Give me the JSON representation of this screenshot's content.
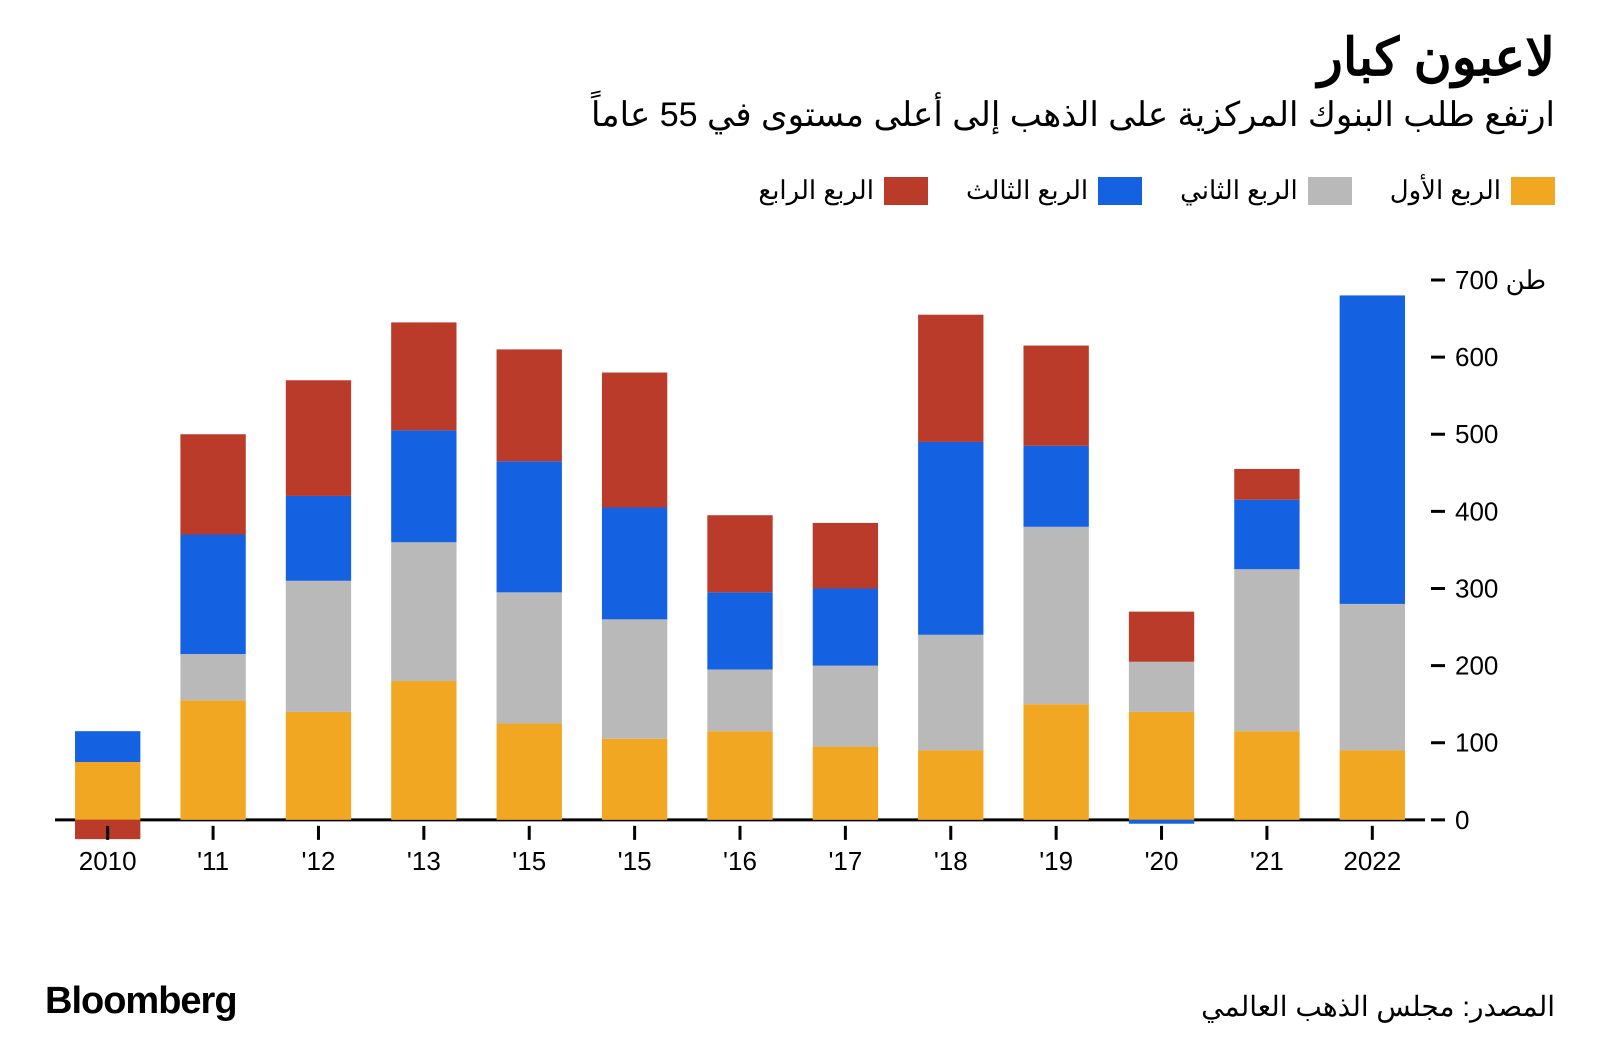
{
  "title": "لاعبون كبار",
  "subtitle": "ارتفع طلب البنوك المركزية على الذهب إلى أعلى مستوى في 55 عاماً",
  "brand": "Bloomberg",
  "source": "المصدر: مجلس الذهب العالمي",
  "legend": {
    "q1": "الربع الأول",
    "q2": "الربع الثاني",
    "q3": "الربع الثالث",
    "q4": "الربع الرابع"
  },
  "chart": {
    "type": "stacked-bar",
    "unit": "طن",
    "ymin": -30,
    "ymax": 700,
    "ytick_step": 100,
    "yticks": [
      0,
      100,
      200,
      300,
      400,
      500,
      600,
      700
    ],
    "colors": {
      "q1": "#f2a722",
      "q2": "#b9b9b9",
      "q3": "#1461e2",
      "q4": "#ba3b29",
      "baseline": "#000000",
      "tick": "#000000",
      "background": "#ffffff"
    },
    "bar_width_ratio": 0.62,
    "axis_fontsize": 26,
    "categories": [
      "2010",
      "'11",
      "'12",
      "'13",
      "'15",
      "'15",
      "'16",
      "'17",
      "'18",
      "'19",
      "'20",
      "'21",
      "2022"
    ],
    "series": [
      {
        "q1": 75,
        "q2": 0,
        "q3": 40,
        "q4": -25
      },
      {
        "q1": 155,
        "q2": 60,
        "q3": 155,
        "q4": 130
      },
      {
        "q1": 140,
        "q2": 170,
        "q3": 110,
        "q4": 150
      },
      {
        "q1": 180,
        "q2": 180,
        "q3": 145,
        "q4": 140
      },
      {
        "q1": 125,
        "q2": 170,
        "q3": 170,
        "q4": 145
      },
      {
        "q1": 105,
        "q2": 155,
        "q3": 145,
        "q4": 175
      },
      {
        "q1": 115,
        "q2": 80,
        "q3": 100,
        "q4": 100
      },
      {
        "q1": 95,
        "q2": 105,
        "q3": 100,
        "q4": 85
      },
      {
        "q1": 90,
        "q2": 150,
        "q3": 250,
        "q4": 165
      },
      {
        "q1": 150,
        "q2": 230,
        "q3": 105,
        "q4": 130
      },
      {
        "q1": 140,
        "q2": 65,
        "q3": -5,
        "q4": 65
      },
      {
        "q1": 115,
        "q2": 210,
        "q3": 90,
        "q4": 40
      },
      {
        "q1": 90,
        "q2": 190,
        "q3": 400,
        "q4": 0
      }
    ]
  }
}
